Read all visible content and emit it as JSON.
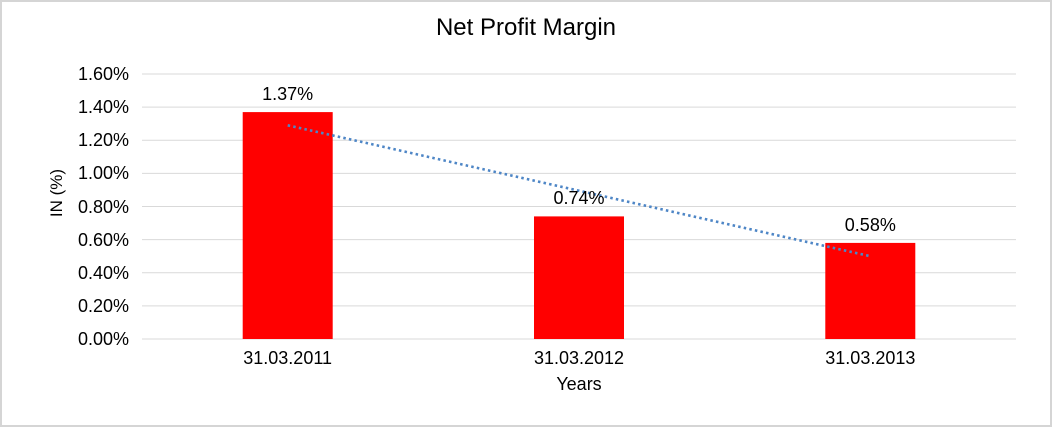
{
  "frame": {
    "background": "#ffffff",
    "border_color": "#d5d5d5"
  },
  "chart_data": {
    "type": "bar",
    "title": "Net Profit Margin",
    "categories": [
      "31.03.2011",
      "31.03.2012",
      "31.03.2013"
    ],
    "values": [
      1.37,
      0.74,
      0.58
    ],
    "data_labels": [
      "1.37%",
      "0.74%",
      "0.58%"
    ],
    "xlabel": "Years",
    "ylabel": "IN (%)",
    "ylim": [
      0,
      1.6
    ],
    "ytick_step": 0.2,
    "ytick_labels": [
      "0.00%",
      "0.20%",
      "0.40%",
      "0.60%",
      "0.80%",
      "1.00%",
      "1.20%",
      "1.40%",
      "1.60%"
    ],
    "grid": true,
    "legend": "none",
    "bar_color": "#ff0000",
    "gridline_color": "#d9d9d9",
    "text_color": "#000000",
    "trendline": {
      "type": "linear",
      "style": "dotted",
      "color": "#4e86c6",
      "start_value": 1.29,
      "end_value": 0.5
    }
  }
}
